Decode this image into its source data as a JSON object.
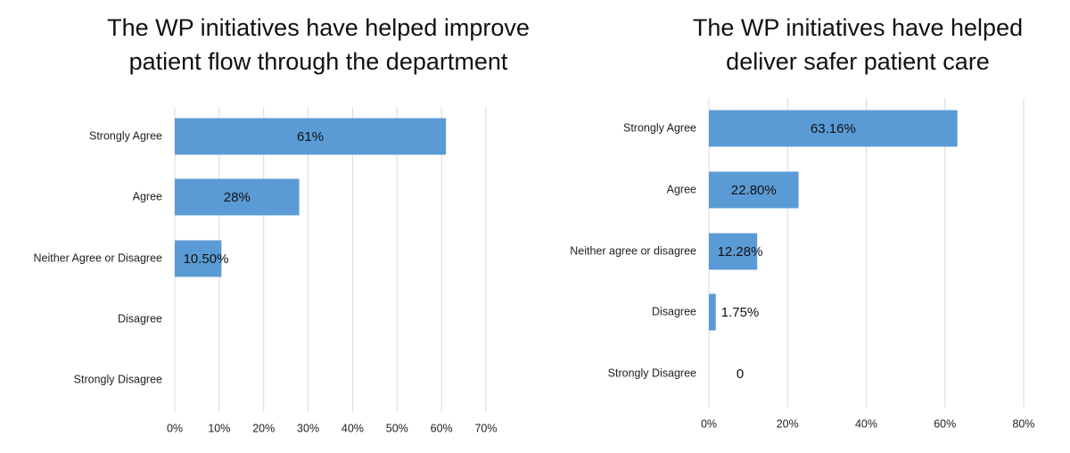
{
  "chart_data": [
    {
      "type": "bar",
      "orientation": "horizontal",
      "title": "The WP initiatives have helped improve patient flow through the department",
      "categories": [
        "Strongly Agree",
        "Agree",
        "Neither Agree or Disagree",
        "Disagree",
        "Strongly Disagree"
      ],
      "values": [
        61,
        28,
        10.5,
        0,
        0
      ],
      "value_labels": [
        "61%",
        "28%",
        "10.50%",
        null,
        null
      ],
      "color": "#5b9bd5",
      "xlim": [
        0,
        70
      ],
      "xticks": [
        {
          "value": 0,
          "label": "0%"
        },
        {
          "value": 10,
          "label": "10%"
        },
        {
          "value": 20,
          "label": "20%"
        },
        {
          "value": 30,
          "label": "30%"
        },
        {
          "value": 40,
          "label": "40%"
        },
        {
          "value": 50,
          "label": "50%"
        },
        {
          "value": 60,
          "label": "60%"
        },
        {
          "value": 70,
          "label": "70%"
        }
      ],
      "grid": true
    },
    {
      "type": "bar",
      "orientation": "horizontal",
      "title": "The WP initiatives have helped deliver safer patient care",
      "categories": [
        "Strongly Agree",
        "Agree",
        "Neither agree or disagree",
        "Disagree",
        "Strongly Disagree"
      ],
      "values": [
        63.16,
        22.8,
        12.28,
        1.75,
        0
      ],
      "value_labels": [
        "63.16%",
        "22.80%",
        "12.28%",
        "1.75%",
        "0"
      ],
      "color": "#5b9bd5",
      "xlim": [
        0,
        80
      ],
      "xticks": [
        {
          "value": 0,
          "label": "0%"
        },
        {
          "value": 20,
          "label": "20%"
        },
        {
          "value": 40,
          "label": "40%"
        },
        {
          "value": 60,
          "label": "60%"
        },
        {
          "value": 80,
          "label": "80%"
        }
      ],
      "grid": true
    }
  ]
}
